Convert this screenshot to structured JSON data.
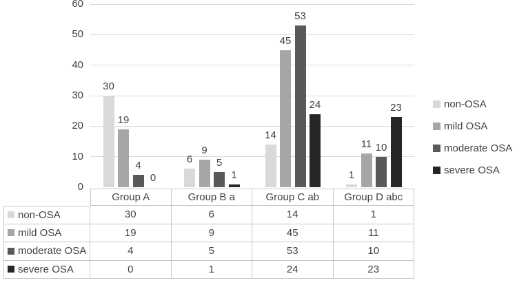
{
  "chart_data": {
    "type": "bar",
    "title": "",
    "xlabel": "",
    "ylabel": "",
    "categories": [
      "Group A",
      "Group B a",
      "Group C ab",
      "Group D abc"
    ],
    "series": [
      {
        "name": "non-OSA",
        "color": "#d9d9d9",
        "values": [
          30,
          6,
          14,
          1
        ]
      },
      {
        "name": "mild OSA",
        "color": "#a6a6a6",
        "values": [
          19,
          9,
          45,
          11
        ]
      },
      {
        "name": "moderate OSA",
        "color": "#595959",
        "values": [
          4,
          5,
          53,
          10
        ]
      },
      {
        "name": "severe OSA",
        "color": "#262626",
        "values": [
          0,
          1,
          24,
          23
        ]
      }
    ],
    "y_axis": {
      "min": 0,
      "max": 60,
      "step": 10,
      "tick_labels": [
        "0",
        "10",
        "20",
        "30",
        "40",
        "50",
        "60"
      ]
    },
    "grid": true,
    "legend_position": "right",
    "data_labels_shown": true,
    "data_table_shown": true
  },
  "colors": {
    "gridline": "#d9d9d9",
    "table_border": "#c6c6c6",
    "text": "#404040",
    "background": "#ffffff"
  }
}
